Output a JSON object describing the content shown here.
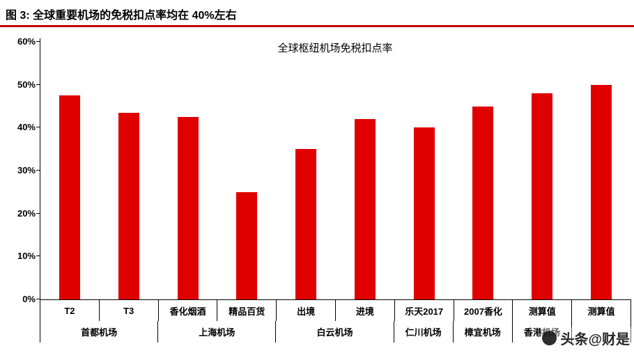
{
  "header": {
    "caption": "图 3: 全球重要机场的免税扣点率均在 40%左右"
  },
  "colors": {
    "rule_red": "#c00000",
    "bar_red": "#e00000",
    "axis_black": "#000000"
  },
  "watermark": {
    "icon": "toutiao-logo",
    "text": "头条@财是"
  },
  "chart_data": {
    "type": "bar",
    "title": "全球枢纽机场免税扣点率",
    "bar_color": "#e00000",
    "ylim": [
      0,
      60
    ],
    "y_tick_values": [
      0,
      10,
      20,
      30,
      40,
      50,
      60
    ],
    "y_tick_labels": [
      "0%",
      "10%",
      "20%",
      "30%",
      "40%",
      "50%",
      "60%"
    ],
    "categories": [
      "T2",
      "T3",
      "香化烟酒",
      "精品百货",
      "出境",
      "进境",
      "乐天2017",
      "2007香化",
      "测算值",
      "测算值"
    ],
    "values": [
      47.5,
      43.5,
      42.5,
      25,
      35,
      42,
      40,
      45,
      48,
      50
    ],
    "groups": [
      {
        "label": "首都机场",
        "span": 2
      },
      {
        "label": "上海机场",
        "span": 2
      },
      {
        "label": "白云机场",
        "span": 2
      },
      {
        "label": "仁川机场",
        "span": 1
      },
      {
        "label": "樟宜机场",
        "span": 1
      },
      {
        "label": "香港机场",
        "span": 1
      },
      {
        "label": "",
        "span": 1
      }
    ],
    "grid": false,
    "legend": false,
    "xlabel": "",
    "ylabel": ""
  }
}
